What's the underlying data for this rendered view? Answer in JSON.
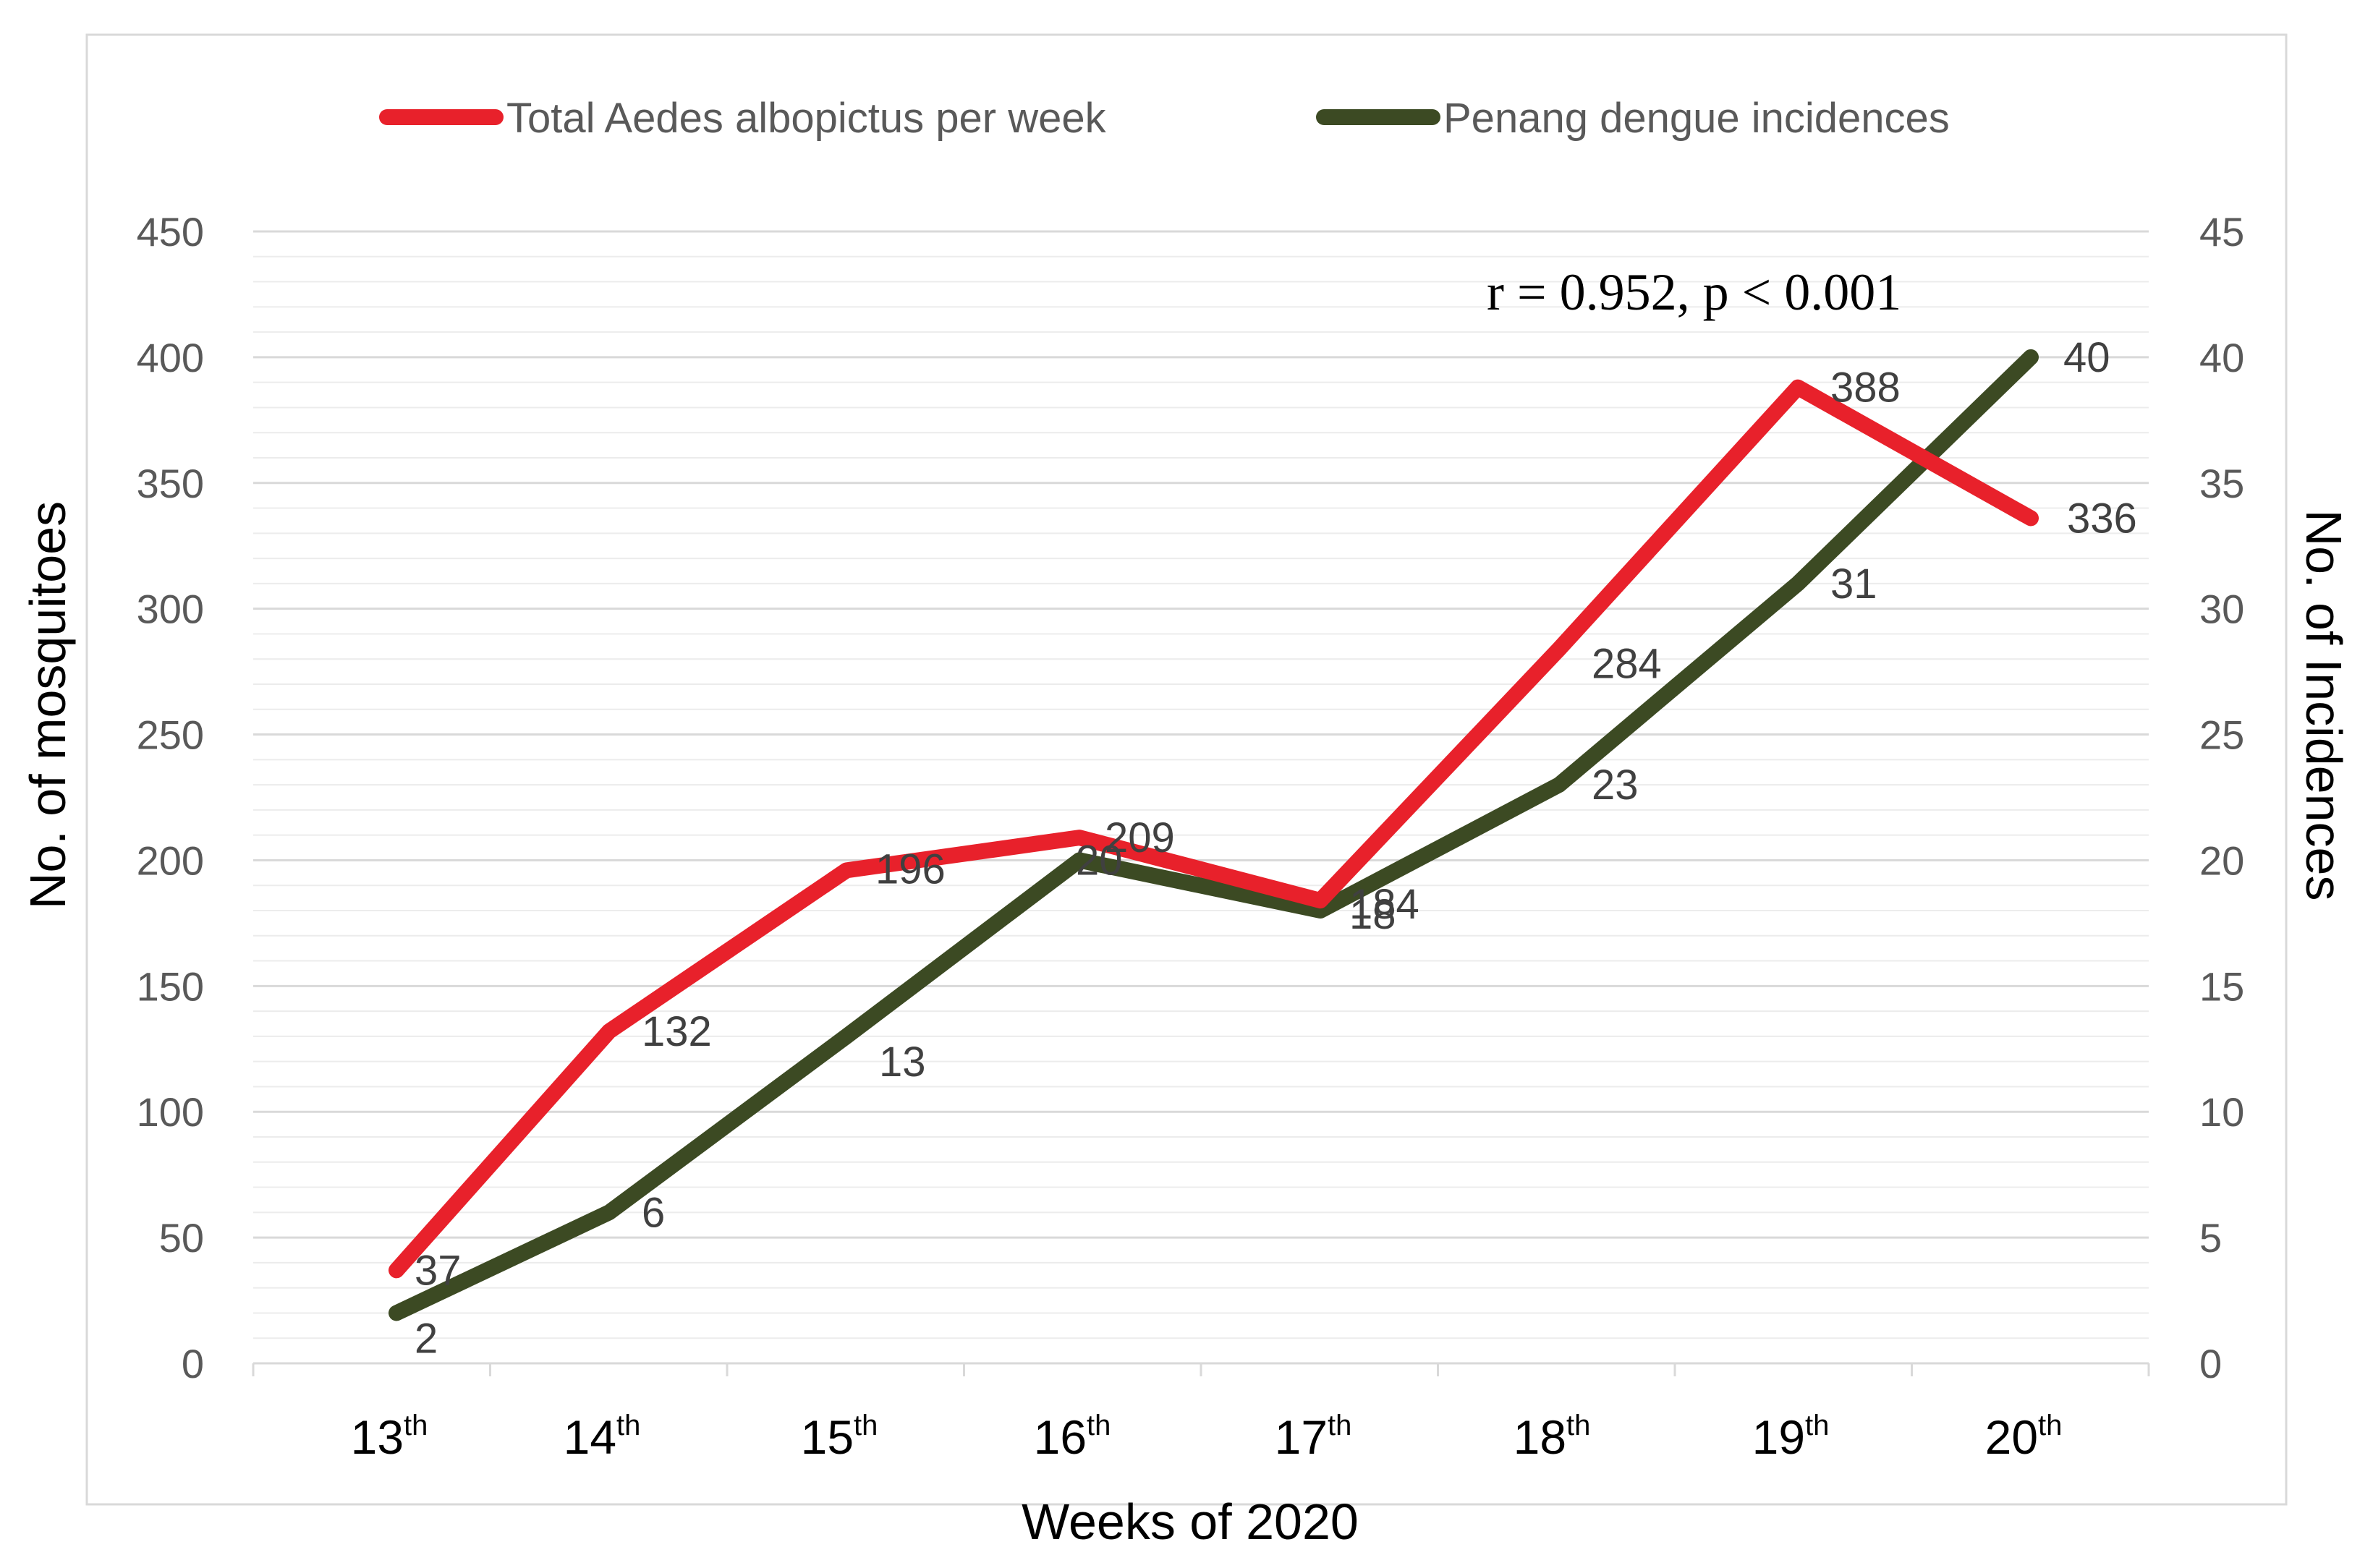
{
  "chart_data": {
    "type": "line",
    "title": "",
    "categories": [
      "13",
      "14",
      "15",
      "16",
      "17",
      "18",
      "19",
      "20"
    ],
    "category_suffix": "th",
    "xlabel": "Weeks of 2020",
    "ylabel": "No. of mosquitoes",
    "y2label": "No. of Incidences",
    "ylim": [
      0,
      450
    ],
    "y2lim": [
      0,
      45
    ],
    "yticks": [
      "0",
      "50",
      "100",
      "150",
      "200",
      "250",
      "300",
      "350",
      "400",
      "450"
    ],
    "y2ticks": [
      "0",
      "5",
      "10",
      "15",
      "20",
      "25",
      "30",
      "35",
      "40",
      "45"
    ],
    "grid": true,
    "legend_position": "top",
    "annotation": "r = 0.952, p < 0.001",
    "series": [
      {
        "name": "Total Aedes albopictus per week",
        "axis": "left",
        "color": "#e8212b",
        "values": [
          37,
          132,
          196,
          209,
          184,
          284,
          388,
          336
        ],
        "labels": [
          "37",
          "132",
          "196",
          "209",
          "184",
          "284",
          "388",
          "336"
        ]
      },
      {
        "name": "Penang dengue incidences",
        "axis": "right",
        "color": "#3c4a23",
        "values": [
          2,
          6,
          13,
          20,
          18,
          23,
          31,
          40
        ],
        "labels": [
          "2",
          "6",
          "13",
          "20",
          "18",
          "23",
          "31",
          "40"
        ]
      }
    ]
  }
}
